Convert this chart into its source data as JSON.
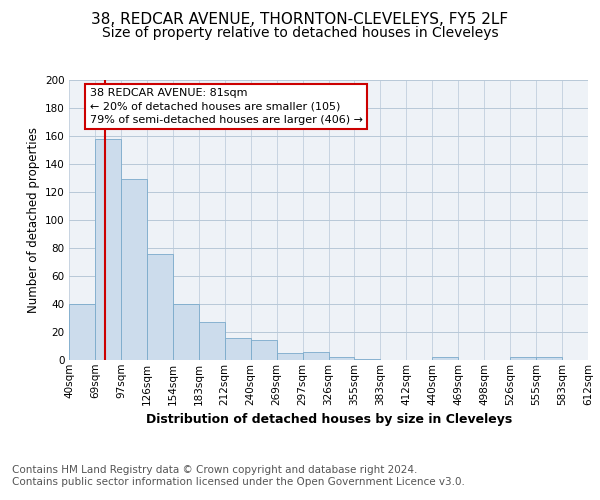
{
  "title1": "38, REDCAR AVENUE, THORNTON-CLEVELEYS, FY5 2LF",
  "title2": "Size of property relative to detached houses in Cleveleys",
  "xlabel": "Distribution of detached houses by size in Cleveleys",
  "ylabel": "Number of detached properties",
  "bin_labels": [
    "40sqm",
    "69sqm",
    "97sqm",
    "126sqm",
    "154sqm",
    "183sqm",
    "212sqm",
    "240sqm",
    "269sqm",
    "297sqm",
    "326sqm",
    "355sqm",
    "383sqm",
    "412sqm",
    "440sqm",
    "469sqm",
    "498sqm",
    "526sqm",
    "555sqm",
    "583sqm",
    "612sqm"
  ],
  "bar_heights": [
    40,
    158,
    129,
    76,
    40,
    27,
    16,
    14,
    5,
    6,
    2,
    1,
    0,
    0,
    2,
    0,
    0,
    2,
    2,
    0
  ],
  "bar_color": "#ccdcec",
  "bar_edge_color": "#7aaacb",
  "background_color": "#eef2f7",
  "grid_color": "#b8c8d8",
  "property_bin_index": 1.4,
  "red_line_color": "#cc0000",
  "annotation_line1": "38 REDCAR AVENUE: 81sqm",
  "annotation_line2": "← 20% of detached houses are smaller (105)",
  "annotation_line3": "79% of semi-detached houses are larger (406) →",
  "annotation_box_color": "#cc0000",
  "ylim": [
    0,
    200
  ],
  "yticks": [
    0,
    20,
    40,
    60,
    80,
    100,
    120,
    140,
    160,
    180,
    200
  ],
  "footer_text": "Contains HM Land Registry data © Crown copyright and database right 2024.\nContains public sector information licensed under the Open Government Licence v3.0.",
  "footer_fontsize": 7.5,
  "title1_fontsize": 11,
  "title2_fontsize": 10,
  "xlabel_fontsize": 9,
  "ylabel_fontsize": 8.5,
  "tick_fontsize": 7.5,
  "annotation_fontsize": 8
}
